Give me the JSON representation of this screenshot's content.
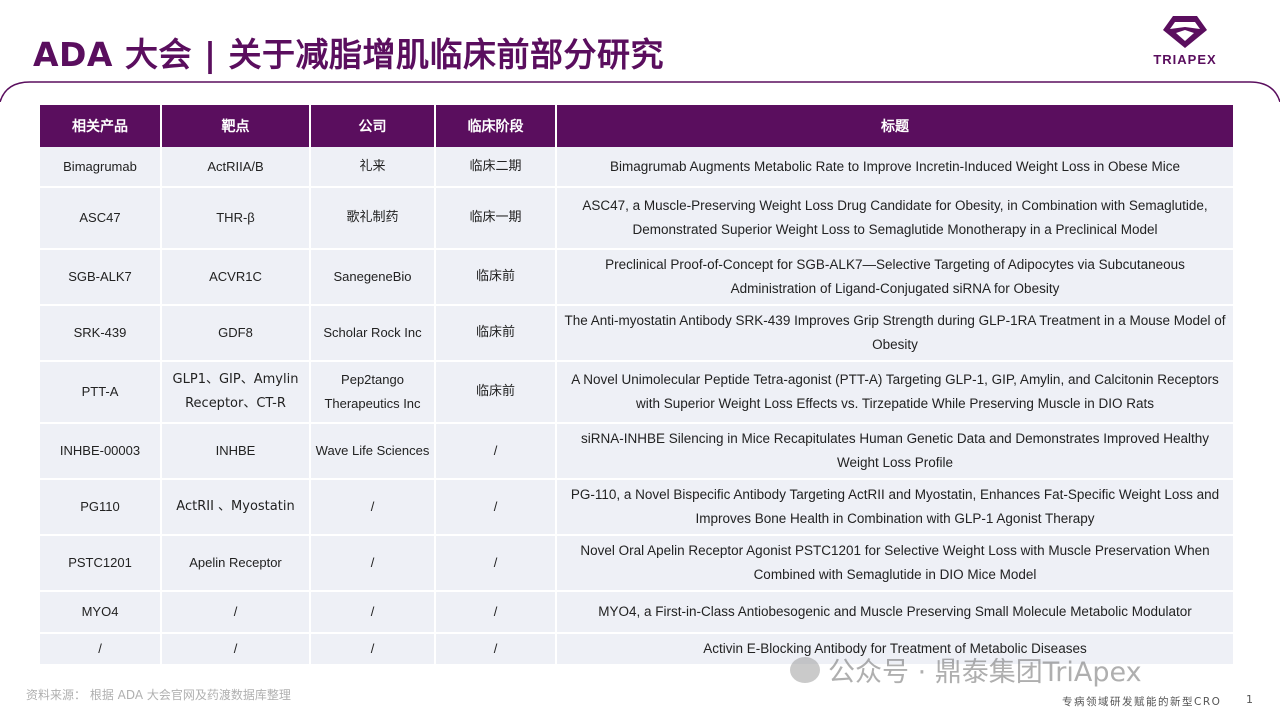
{
  "header": {
    "title": "ADA 大会 | 关于减脂增肌临床前部分研究",
    "logo_text": "TRIAPEX"
  },
  "table": {
    "columns": [
      "相关产品",
      "靶点",
      "公司",
      "临床阶段",
      "标题"
    ],
    "rows": [
      {
        "product": "Bimagrumab",
        "target": "ActRIIA/B",
        "company": "礼来",
        "stage": "临床二期",
        "title": "Bimagrumab Augments Metabolic Rate to Improve Incretin-Induced Weight Loss in Obese Mice"
      },
      {
        "product": "ASC47",
        "target": "THR-β",
        "company": "歌礼制药",
        "stage": "临床一期",
        "title": "ASC47, a Muscle-Preserving Weight Loss Drug Candidate for Obesity, in Combination with Semaglutide, Demonstrated Superior Weight Loss to Semaglutide Monotherapy in a Preclinical Model"
      },
      {
        "product": "SGB-ALK7",
        "target": "ACVR1C",
        "company": "SanegeneBio",
        "stage": "临床前",
        "title": "Preclinical Proof-of-Concept for SGB-ALK7—Selective Targeting of Adipocytes via Subcutaneous Administration of Ligand-Conjugated siRNA for Obesity"
      },
      {
        "product": "SRK-439",
        "target": "GDF8",
        "company": "Scholar Rock Inc",
        "stage": "临床前",
        "title": "The Anti-myostatin Antibody SRK-439 Improves Grip Strength during GLP-1RA Treatment in a Mouse Model of Obesity"
      },
      {
        "product": "PTT-A",
        "target": "GLP1、GIP、Amylin Receptor、CT-R",
        "company": "Pep2tango Therapeutics Inc",
        "stage": "临床前",
        "title": "A Novel Unimolecular Peptide Tetra-agonist (PTT-A) Targeting GLP-1, GIP, Amylin, and Calcitonin Receptors with Superior Weight Loss Effects vs. Tirzepatide While Preserving Muscle in DIO Rats"
      },
      {
        "product": "INHBE-00003",
        "target": "INHBE",
        "company": "Wave Life Sciences",
        "stage": "/",
        "title": "siRNA-INHBE Silencing in Mice Recapitulates Human Genetic Data and Demonstrates Improved Healthy Weight Loss Profile"
      },
      {
        "product": "PG110",
        "target": "ActRII 、Myostatin",
        "company": "/",
        "stage": "/",
        "title": "PG-110, a Novel Bispecific Antibody Targeting ActRII and Myostatin, Enhances Fat-Specific Weight Loss and Improves Bone Health in Combination with GLP-1 Agonist Therapy"
      },
      {
        "product": "PSTC1201",
        "target": "Apelin Receptor",
        "company": "/",
        "stage": "/",
        "title": "Novel Oral Apelin Receptor Agonist PSTC1201 for Selective Weight Loss with Muscle Preservation When Combined with Semaglutide in DIO Mice Model"
      },
      {
        "product": "MYO4",
        "target": "/",
        "company": "/",
        "stage": "/",
        "title": "MYO4, a First-in-Class Antiobesogenic and Muscle Preserving Small Molecule Metabolic Modulator"
      },
      {
        "product": "/",
        "target": "/",
        "company": "/",
        "stage": "/",
        "title": "Activin E-Blocking Antibody for Treatment of Metabolic Diseases"
      }
    ]
  },
  "footer": {
    "source": "资料来源：  根据 ADA 大会官网及药渡数据库整理",
    "watermark": "公众号 · 鼎泰集团TriApex",
    "tagline": "专病领域研发赋能的新型CRO",
    "page_number": "1"
  },
  "colors": {
    "brand": "#5a0e5e",
    "row_bg": "#eef0f6"
  }
}
